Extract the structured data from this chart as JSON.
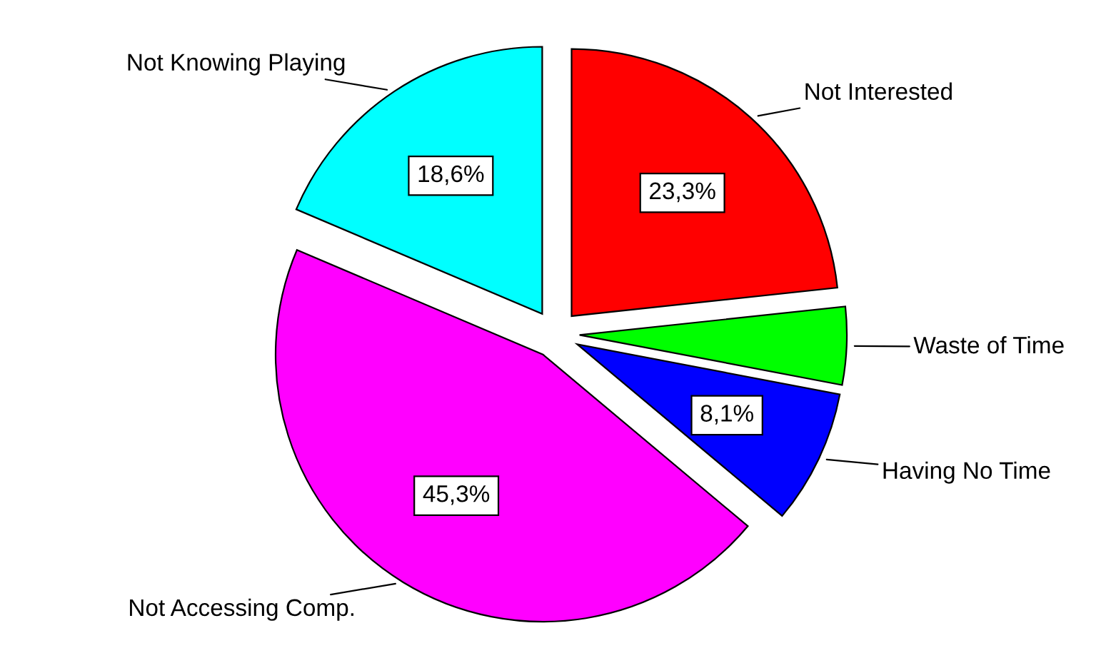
{
  "chart_data": {
    "type": "pie",
    "categories": [
      "Not Interested",
      "Waste of Time",
      "Having No Time",
      "Not Accessing Comp.",
      "Not Knowing Playing"
    ],
    "values": [
      23.3,
      4.7,
      8.1,
      45.3,
      18.6
    ],
    "colors": [
      "#ff0000",
      "#00ff00",
      "#0000ff",
      "#ff00ff",
      "#00ffff"
    ],
    "value_labels": [
      "23,3%",
      null,
      "8,1%",
      "45,3%",
      "18,6%"
    ]
  }
}
